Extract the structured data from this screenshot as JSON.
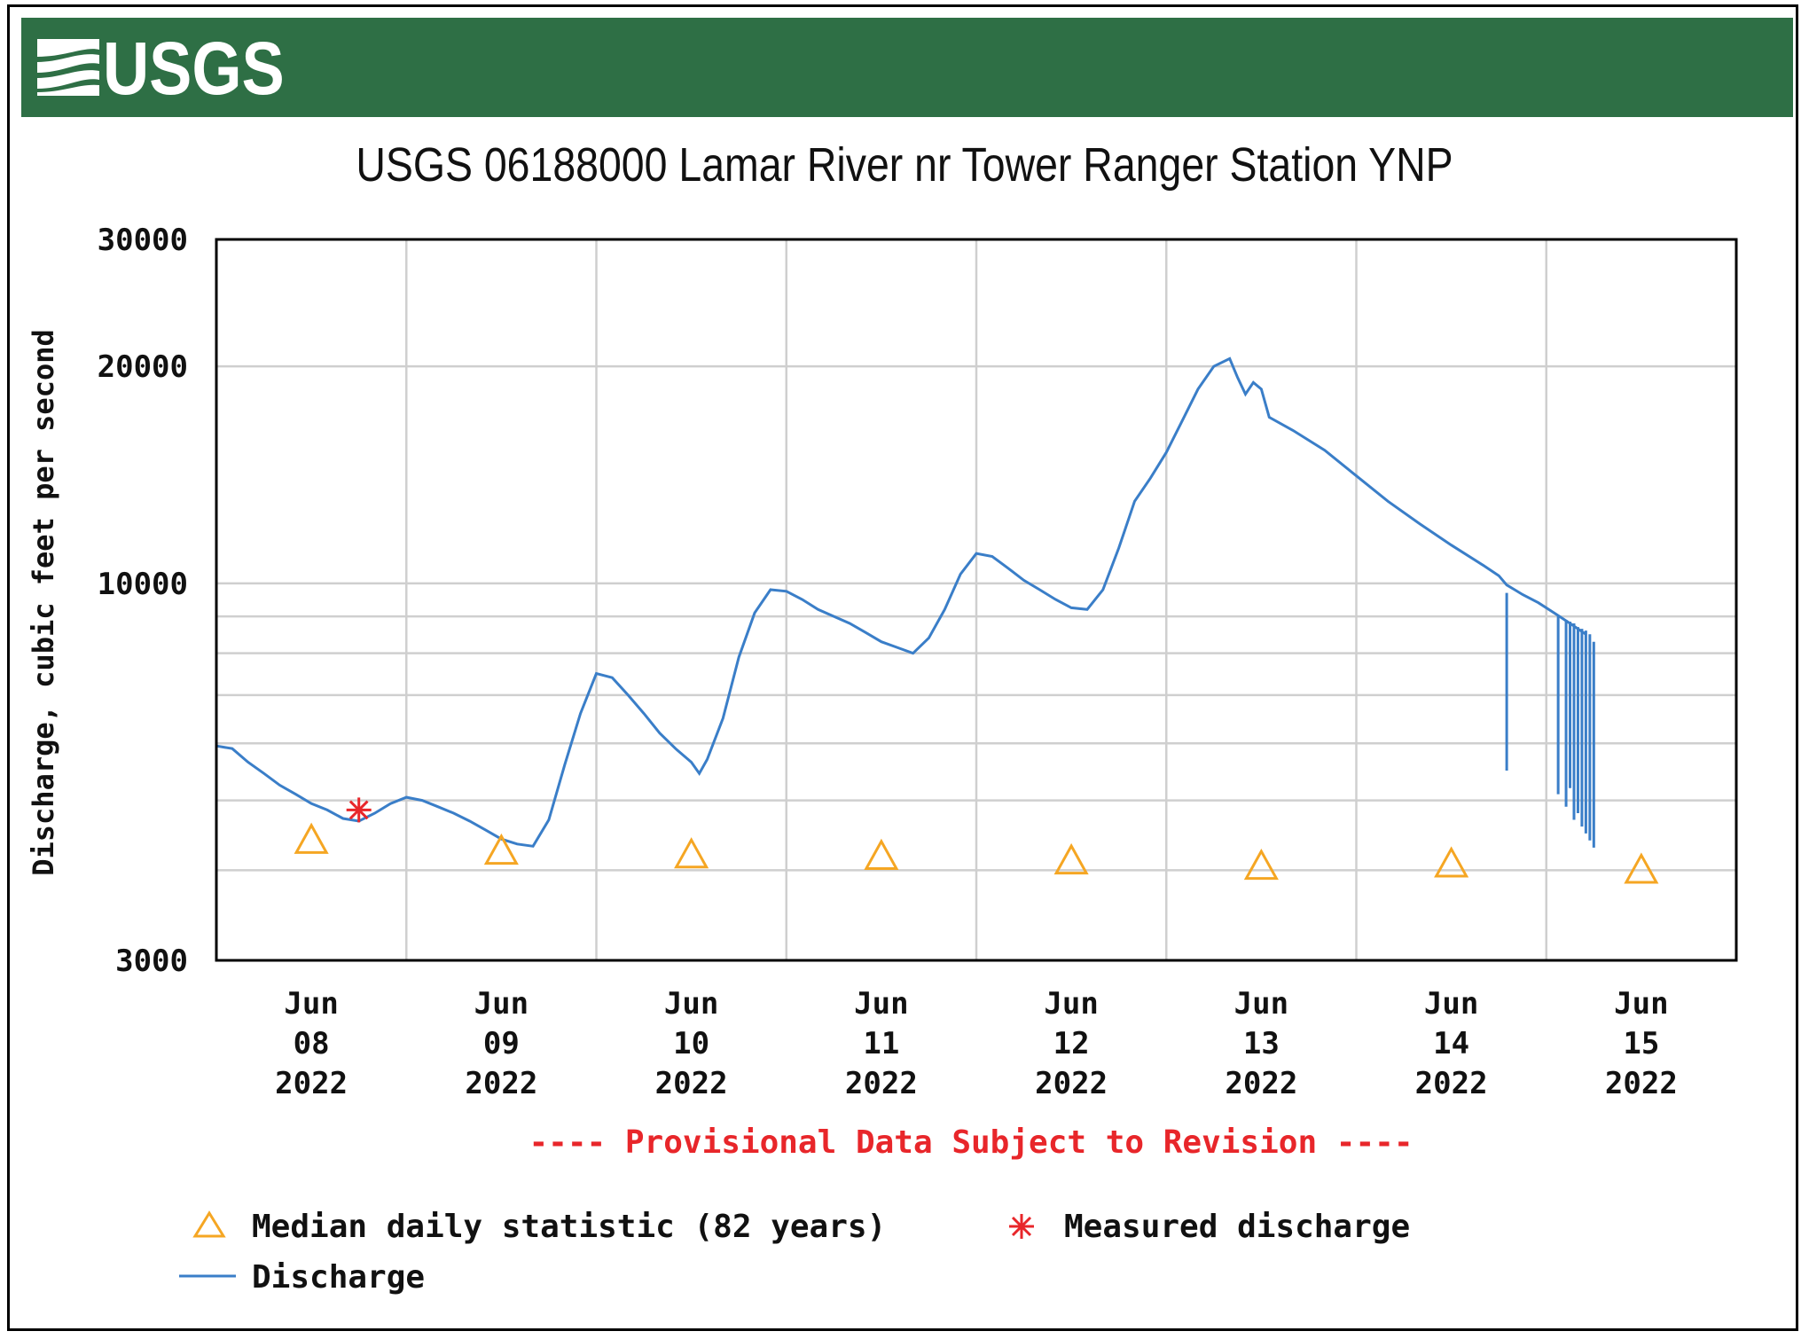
{
  "header": {
    "agency": "USGS",
    "logo_icon": "usgs-wave-logo-icon",
    "banner_color": "#2e6f45"
  },
  "chart_data": {
    "type": "line",
    "title": "USGS 06188000 Lamar River nr Tower Ranger Station YNP",
    "ylabel": "Discharge, cubic feet per second",
    "xlabel": "",
    "yscale": "log",
    "ylim": [
      3000,
      30000
    ],
    "yticks": [
      3000,
      10000,
      20000,
      30000
    ],
    "y_minor_gridlines": [
      4000,
      5000,
      6000,
      7000,
      8000,
      9000
    ],
    "xlim": [
      "2022-06-07 12:00",
      "2022-06-15 12:00"
    ],
    "grid": true,
    "xtick_labels": [
      {
        "x": "2022-06-08",
        "label": [
          "Jun",
          "08",
          "2022"
        ]
      },
      {
        "x": "2022-06-09",
        "label": [
          "Jun",
          "09",
          "2022"
        ]
      },
      {
        "x": "2022-06-10",
        "label": [
          "Jun",
          "10",
          "2022"
        ]
      },
      {
        "x": "2022-06-11",
        "label": [
          "Jun",
          "11",
          "2022"
        ]
      },
      {
        "x": "2022-06-12",
        "label": [
          "Jun",
          "12",
          "2022"
        ]
      },
      {
        "x": "2022-06-13",
        "label": [
          "Jun",
          "13",
          "2022"
        ]
      },
      {
        "x": "2022-06-14",
        "label": [
          "Jun",
          "14",
          "2022"
        ]
      },
      {
        "x": "2022-06-15",
        "label": [
          "Jun",
          "15",
          "2022"
        ]
      }
    ],
    "series": [
      {
        "name": "Discharge",
        "color": "#3a7ec8",
        "style": "line",
        "points": [
          [
            "2022-06-07 12:00",
            5950
          ],
          [
            "2022-06-07 14:00",
            5900
          ],
          [
            "2022-06-07 16:00",
            5650
          ],
          [
            "2022-06-07 18:00",
            5450
          ],
          [
            "2022-06-07 20:00",
            5250
          ],
          [
            "2022-06-07 22:00",
            5100
          ],
          [
            "2022-06-08 00:00",
            4950
          ],
          [
            "2022-06-08 02:00",
            4850
          ],
          [
            "2022-06-08 04:00",
            4720
          ],
          [
            "2022-06-08 06:00",
            4680
          ],
          [
            "2022-06-08 08:00",
            4800
          ],
          [
            "2022-06-08 10:00",
            4950
          ],
          [
            "2022-06-08 12:00",
            5050
          ],
          [
            "2022-06-08 14:00",
            5000
          ],
          [
            "2022-06-08 16:00",
            4900
          ],
          [
            "2022-06-08 18:00",
            4800
          ],
          [
            "2022-06-08 20:00",
            4680
          ],
          [
            "2022-06-08 22:00",
            4550
          ],
          [
            "2022-06-09 00:00",
            4420
          ],
          [
            "2022-06-09 02:00",
            4350
          ],
          [
            "2022-06-09 04:00",
            4320
          ],
          [
            "2022-06-09 06:00",
            4700
          ],
          [
            "2022-06-09 08:00",
            5600
          ],
          [
            "2022-06-09 10:00",
            6600
          ],
          [
            "2022-06-09 12:00",
            7500
          ],
          [
            "2022-06-09 14:00",
            7400
          ],
          [
            "2022-06-09 16:00",
            7000
          ],
          [
            "2022-06-09 18:00",
            6600
          ],
          [
            "2022-06-09 20:00",
            6200
          ],
          [
            "2022-06-09 22:00",
            5900
          ],
          [
            "2022-06-10 00:00",
            5650
          ],
          [
            "2022-06-10 01:00",
            5450
          ],
          [
            "2022-06-10 02:00",
            5700
          ],
          [
            "2022-06-10 04:00",
            6500
          ],
          [
            "2022-06-10 06:00",
            7900
          ],
          [
            "2022-06-10 08:00",
            9100
          ],
          [
            "2022-06-10 10:00",
            9800
          ],
          [
            "2022-06-10 12:00",
            9750
          ],
          [
            "2022-06-10 14:00",
            9500
          ],
          [
            "2022-06-10 16:00",
            9200
          ],
          [
            "2022-06-10 18:00",
            9000
          ],
          [
            "2022-06-10 20:00",
            8800
          ],
          [
            "2022-06-10 22:00",
            8550
          ],
          [
            "2022-06-11 00:00",
            8300
          ],
          [
            "2022-06-11 02:00",
            8150
          ],
          [
            "2022-06-11 04:00",
            8000
          ],
          [
            "2022-06-11 06:00",
            8400
          ],
          [
            "2022-06-11 08:00",
            9200
          ],
          [
            "2022-06-11 10:00",
            10300
          ],
          [
            "2022-06-11 12:00",
            11000
          ],
          [
            "2022-06-11 14:00",
            10900
          ],
          [
            "2022-06-11 16:00",
            10500
          ],
          [
            "2022-06-11 18:00",
            10100
          ],
          [
            "2022-06-11 20:00",
            9800
          ],
          [
            "2022-06-11 22:00",
            9500
          ],
          [
            "2022-06-12 00:00",
            9250
          ],
          [
            "2022-06-12 02:00",
            9200
          ],
          [
            "2022-06-12 04:00",
            9800
          ],
          [
            "2022-06-12 06:00",
            11200
          ],
          [
            "2022-06-12 08:00",
            13000
          ],
          [
            "2022-06-12 10:00",
            14000
          ],
          [
            "2022-06-12 12:00",
            15200
          ],
          [
            "2022-06-12 14:00",
            16800
          ],
          [
            "2022-06-12 16:00",
            18600
          ],
          [
            "2022-06-12 18:00",
            20000
          ],
          [
            "2022-06-12 20:00",
            20500
          ],
          [
            "2022-06-12 21:00",
            19300
          ],
          [
            "2022-06-12 22:00",
            18300
          ],
          [
            "2022-06-12 23:00",
            19000
          ],
          [
            "2022-06-13 00:00",
            18600
          ],
          [
            "2022-06-13 01:00",
            17000
          ],
          [
            "2022-06-13 04:00",
            16300
          ],
          [
            "2022-06-13 08:00",
            15300
          ],
          [
            "2022-06-13 12:00",
            14100
          ],
          [
            "2022-06-13 16:00",
            13000
          ],
          [
            "2022-06-13 20:00",
            12100
          ],
          [
            "2022-06-14 00:00",
            11300
          ],
          [
            "2022-06-14 04:00",
            10600
          ],
          [
            "2022-06-14 06:00",
            10250
          ],
          [
            "2022-06-14 07:00",
            9950
          ],
          [
            "2022-06-14 08:00",
            9800
          ],
          [
            "2022-06-14 09:00",
            9650
          ],
          [
            "2022-06-14 11:00",
            9400
          ],
          [
            "2022-06-14 13:00",
            9100
          ],
          [
            "2022-06-14 15:00",
            8800
          ],
          [
            "2022-06-14 17:00",
            8500
          ]
        ],
        "gaps_note_free": true
      },
      {
        "name": "Median daily statistic (82 years)",
        "color": "#f5a623",
        "style": "triangle",
        "points": [
          [
            "2022-06-08",
            4400
          ],
          [
            "2022-06-09",
            4250
          ],
          [
            "2022-06-10",
            4200
          ],
          [
            "2022-06-11",
            4180
          ],
          [
            "2022-06-12",
            4120
          ],
          [
            "2022-06-13",
            4050
          ],
          [
            "2022-06-14",
            4080
          ],
          [
            "2022-06-15",
            4000
          ]
        ]
      },
      {
        "name": "Measured discharge",
        "color": "#e8262a",
        "style": "asterisk",
        "points": [
          [
            "2022-06-08 06:00",
            4850
          ]
        ]
      }
    ],
    "discharge_dropouts": [
      [
        "2022-06-14 07:00",
        9700,
        5500
      ],
      [
        "2022-06-14 13:30",
        9000,
        5100
      ],
      [
        "2022-06-14 14:30",
        8900,
        4900
      ],
      [
        "2022-06-14 15:00",
        8850,
        5200
      ],
      [
        "2022-06-14 15:30",
        8800,
        4700
      ],
      [
        "2022-06-14 16:00",
        8700,
        4800
      ],
      [
        "2022-06-14 16:30",
        8650,
        4600
      ],
      [
        "2022-06-14 17:00",
        8600,
        4500
      ],
      [
        "2022-06-14 17:30",
        8500,
        4400
      ],
      [
        "2022-06-14 18:00",
        8300,
        4300
      ]
    ],
    "provisional_note": "---- Provisional Data Subject to Revision ----",
    "legend": [
      {
        "symbol": "triangle",
        "label": "Median daily statistic (82 years)",
        "color": "#f5a623"
      },
      {
        "symbol": "asterisk",
        "label": "Measured discharge",
        "color": "#e8262a"
      },
      {
        "symbol": "line",
        "label": "Discharge",
        "color": "#3a7ec8"
      }
    ],
    "legend_position": "bottom-left"
  }
}
